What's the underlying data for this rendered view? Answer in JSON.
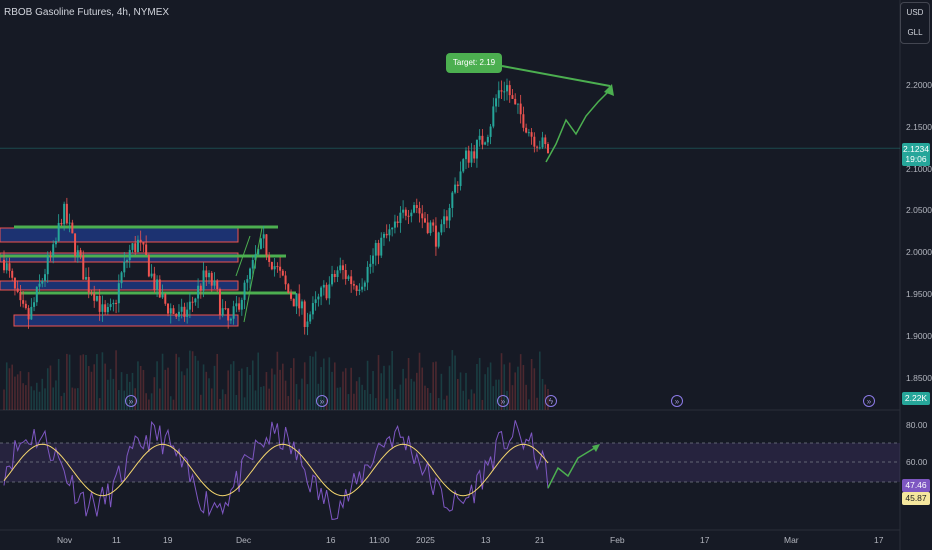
{
  "header": {
    "title": "RBOB Gasoline Futures, 4h, NYMEX"
  },
  "unit_menu": {
    "currency": "USD",
    "unit": "GLL"
  },
  "price_axis": {
    "ticks": [
      "2.2000",
      "2.1500",
      "2.1000",
      "2.0500",
      "2.0000",
      "1.9500",
      "1.9000",
      "1.8500"
    ]
  },
  "rsi_axis": {
    "ticks": [
      "80.00",
      "60.00"
    ]
  },
  "time_axis": {
    "ticks": [
      "Nov",
      "11",
      "19",
      "Dec",
      "16",
      "11:00",
      "2025",
      "13",
      "21",
      "Feb",
      "17",
      "Mar",
      "17"
    ]
  },
  "badges": {
    "last_price": "2.1234",
    "countdown": "19:06",
    "volume": "2.22K",
    "rsi_value": "47.46",
    "rsi_ma": "45.87"
  },
  "annotation": {
    "target_label": "Target: 2.19"
  },
  "events": {
    "dividend_glyph": "»",
    "earnings_glyph": "ϟ"
  },
  "colors": {
    "up": "#26a69a",
    "down": "#ef5350",
    "target_green": "#4caf50",
    "zone_blue": "#2962ff",
    "rsi_line": "#7e57c2",
    "rsi_ma": "#f5d76e",
    "background": "#161a25"
  },
  "chart_data": {
    "type": "candlestick",
    "symbol": "RBOB Gasoline Futures",
    "interval": "4h",
    "exchange": "NYMEX",
    "price_range": [
      1.82,
      2.23
    ],
    "close_path": [
      1.99,
      1.96,
      1.93,
      1.92,
      1.95,
      1.98,
      2.0,
      2.05,
      2.02,
      1.99,
      1.96,
      1.95,
      1.92,
      1.93,
      1.97,
      2.0,
      2.01,
      1.99,
      1.96,
      1.94,
      1.93,
      1.92,
      1.93,
      1.95,
      1.97,
      1.96,
      1.93,
      1.91,
      1.94,
      1.96,
      1.99,
      2.01,
      1.99,
      1.97,
      1.95,
      1.94,
      1.92,
      1.93,
      1.95,
      1.96,
      1.98,
      1.97,
      1.96,
      1.97,
      1.99,
      2.01,
      2.02,
      2.03,
      2.05,
      2.06,
      2.04,
      2.03,
      2.01,
      2.05,
      2.08,
      2.11,
      2.12,
      2.13,
      2.15,
      2.19,
      2.2,
      2.17,
      2.16,
      2.14,
      2.13,
      2.12
    ],
    "last_price": 2.1234,
    "target": 2.19,
    "rsi": {
      "range": [
        20,
        90
      ],
      "levels": [
        70,
        50,
        30
      ],
      "last": 47.46,
      "ma_last": 45.87
    },
    "legend": "none",
    "grid": false
  }
}
